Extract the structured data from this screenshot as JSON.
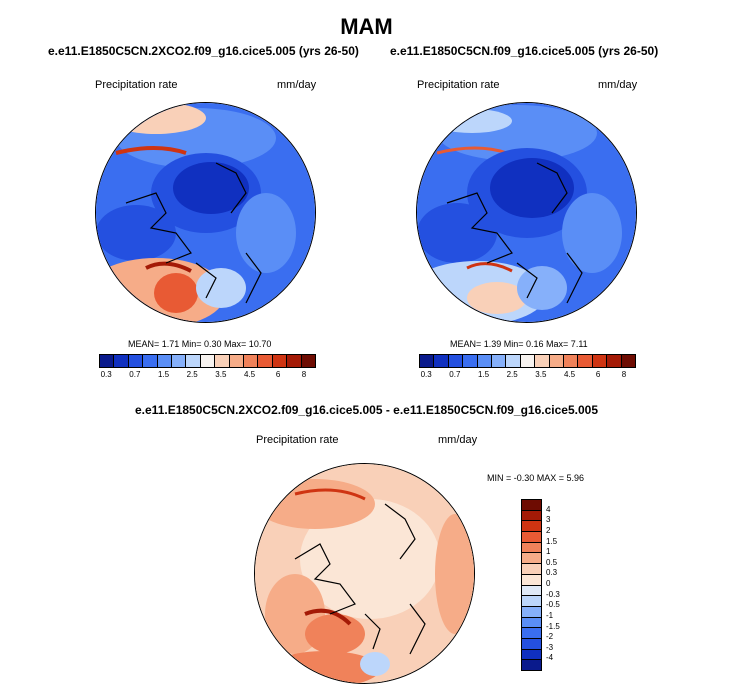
{
  "title": "MAM",
  "panels": [
    {
      "case": "e.e11.E1850C5CN.2XCO2.f09_g16.cice5.005 (yrs 26-50)",
      "field_label": "Precipitation rate",
      "units": "mm/day",
      "stats": "MEAN=   1.71  Min=   0.30  Max=  10.70"
    },
    {
      "case": "e.e11.E1850C5CN.f09_g16.cice5.005 (yrs 26-50)",
      "field_label": "Precipitation rate",
      "units": "mm/day",
      "stats": "MEAN=   1.39  Min=   0.16  Max=   7.11"
    }
  ],
  "abs_colorbar": {
    "colors": [
      "#0a1a8c",
      "#1030c0",
      "#2450e0",
      "#3a6ef0",
      "#5a8ef6",
      "#86b0fa",
      "#bcd6fb",
      "#f7f3f0",
      "#f9d0b8",
      "#f6ac88",
      "#f0825a",
      "#e85a34",
      "#cf3412",
      "#a41a06",
      "#6e0c02"
    ],
    "tick_labels": [
      "0.3",
      "0.7",
      "1.5",
      "2.5",
      "3.5",
      "4.5",
      "6",
      "8"
    ]
  },
  "diff": {
    "title": "e.e11.E1850C5CN.2XCO2.f09_g16.cice5.005 - e.e11.E1850C5CN.f09_g16.cice5.005",
    "field_label": "Precipitation rate",
    "units": "mm/day",
    "minmax": "MIN = -0.30 MAX =   5.96"
  },
  "diff_colorbar": {
    "colors": [
      "#6e0c02",
      "#a41a06",
      "#cf3412",
      "#e85a34",
      "#f0825a",
      "#f6ac88",
      "#f9d0b8",
      "#fbe6d6",
      "#dfe9f7",
      "#bcd6fb",
      "#86b0fa",
      "#5a8ef6",
      "#3a6ef0",
      "#2450e0",
      "#1030c0",
      "#0a1a8c"
    ],
    "labels": [
      "4",
      "3",
      "2",
      "1.5",
      "1",
      "0.5",
      "0.3",
      "0",
      "-0.3",
      "-0.5",
      "-1",
      "-1.5",
      "-2",
      "-3",
      "-4"
    ]
  }
}
